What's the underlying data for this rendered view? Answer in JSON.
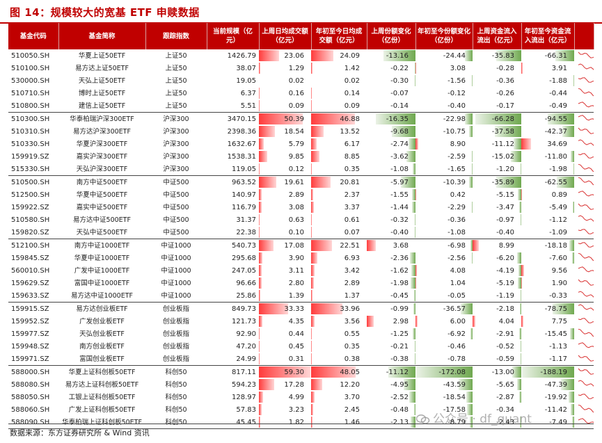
{
  "title": "图 14：规模较大的宽基 ETF 申赎数据",
  "columns": [
    "基金代码",
    "基金简称",
    "跟踪指数",
    "当前规模（亿元）",
    "上周日均成交额（亿元）",
    "年初至今日均成交额（亿元）",
    "上周份额变化（亿份）",
    "年初至今份额变化（亿份）",
    "上周资金流入流出（亿元）",
    "年初至今资金流入流出（亿元）",
    ""
  ],
  "groups": [
    {
      "rows": [
        {
          "code": "510050.SH",
          "name": "华夏上证50ETF",
          "index": "上证50",
          "scale": "1426.79",
          "wk_turn": "23.06",
          "ytd_turn": "24.09",
          "wk_share": "-13.16",
          "ytd_share": "-24.44",
          "wk_flow": "-35.83",
          "ytd_flow": "-66.31"
        },
        {
          "code": "510100.SH",
          "name": "易方达上证50ETF",
          "index": "上证50",
          "scale": "38.07",
          "wk_turn": "1.29",
          "ytd_turn": "1.42",
          "wk_share": "-0.22",
          "ytd_share": "3.08",
          "wk_flow": "-0.28",
          "ytd_flow": "3.91"
        },
        {
          "code": "530000.SH",
          "name": "天弘上证50ETF",
          "index": "上证50",
          "scale": "19.05",
          "wk_turn": "0.02",
          "ytd_turn": "0.02",
          "wk_share": "-0.30",
          "ytd_share": "-1.56",
          "wk_flow": "-0.36",
          "ytd_flow": "-1.88"
        },
        {
          "code": "510710.SH",
          "name": "博时上证50ETF",
          "index": "上证50",
          "scale": "6.37",
          "wk_turn": "0.16",
          "ytd_turn": "0.14",
          "wk_share": "-0.07",
          "ytd_share": "-0.12",
          "wk_flow": "-0.26",
          "ytd_flow": "-0.44"
        },
        {
          "code": "510800.SH",
          "name": "建信上证50ETF",
          "index": "上证50",
          "scale": "5.51",
          "wk_turn": "0.09",
          "ytd_turn": "0.09",
          "wk_share": "-0.14",
          "ytd_share": "-0.40",
          "wk_flow": "-0.17",
          "ytd_flow": "-0.49"
        }
      ]
    },
    {
      "rows": [
        {
          "code": "510300.SH",
          "name": "华泰柏瑞沪深300ETF",
          "index": "沪深300",
          "scale": "3470.15",
          "wk_turn": "50.39",
          "ytd_turn": "46.88",
          "wk_share": "-16.35",
          "ytd_share": "-22.98",
          "wk_flow": "-66.28",
          "ytd_flow": "-94.55"
        },
        {
          "code": "510310.SH",
          "name": "易方达沪深300ETF",
          "index": "沪深300",
          "scale": "2398.36",
          "wk_turn": "18.54",
          "ytd_turn": "13.52",
          "wk_share": "-9.68",
          "ytd_share": "-10.75",
          "wk_flow": "-37.58",
          "ytd_flow": "-42.37"
        },
        {
          "code": "510330.SH",
          "name": "华夏沪深300ETF",
          "index": "沪深300",
          "scale": "1632.67",
          "wk_turn": "5.79",
          "ytd_turn": "6.17",
          "wk_share": "-2.74",
          "ytd_share": "8.90",
          "wk_flow": "-11.12",
          "ytd_flow": "34.69"
        },
        {
          "code": "159919.SZ",
          "name": "嘉实沪深300ETF",
          "index": "沪深300",
          "scale": "1538.31",
          "wk_turn": "9.85",
          "ytd_turn": "8.85",
          "wk_share": "-3.62",
          "ytd_share": "-2.59",
          "wk_flow": "-15.02",
          "ytd_flow": "-11.80"
        },
        {
          "code": "515330.SH",
          "name": "天弘沪深300ETF",
          "index": "沪深300",
          "scale": "119.05",
          "wk_turn": "0.12",
          "ytd_turn": "0.35",
          "wk_share": "-1.08",
          "ytd_share": "-1.65",
          "wk_flow": "-1.20",
          "ytd_flow": "-1.98"
        }
      ]
    },
    {
      "rows": [
        {
          "code": "510500.SH",
          "name": "南方中证500ETF",
          "index": "中证500",
          "scale": "963.52",
          "wk_turn": "19.61",
          "ytd_turn": "20.81",
          "wk_share": "-5.97",
          "ytd_share": "-10.39",
          "wk_flow": "-35.89",
          "ytd_flow": "-62.55"
        },
        {
          "code": "512500.SH",
          "name": "华夏中证500ETF",
          "index": "中证500",
          "scale": "140.97",
          "wk_turn": "2.89",
          "ytd_turn": "2.37",
          "wk_share": "-1.55",
          "ytd_share": "0.42",
          "wk_flow": "-5.15",
          "ytd_flow": "0.89"
        },
        {
          "code": "159922.SZ",
          "name": "嘉实中证500ETF",
          "index": "中证500",
          "scale": "116.79",
          "wk_turn": "3.08",
          "ytd_turn": "3.37",
          "wk_share": "-1.44",
          "ytd_share": "-2.29",
          "wk_flow": "-3.47",
          "ytd_flow": "-5.49"
        },
        {
          "code": "510580.SH",
          "name": "易方达中证500ETF",
          "index": "中证500",
          "scale": "31.37",
          "wk_turn": "0.63",
          "ytd_turn": "0.61",
          "wk_share": "-0.32",
          "ytd_share": "-0.36",
          "wk_flow": "-0.97",
          "ytd_flow": "-1.12"
        },
        {
          "code": "159820.SZ",
          "name": "天弘中证500ETF",
          "index": "中证500",
          "scale": "22.38",
          "wk_turn": "0.10",
          "ytd_turn": "0.07",
          "wk_share": "-0.40",
          "ytd_share": "-1.08",
          "wk_flow": "-0.40",
          "ytd_flow": "-1.09"
        }
      ]
    },
    {
      "rows": [
        {
          "code": "512100.SH",
          "name": "南方中证1000ETF",
          "index": "中证1000",
          "scale": "540.73",
          "wk_turn": "17.08",
          "ytd_turn": "22.51",
          "wk_share": "3.68",
          "ytd_share": "-6.98",
          "wk_flow": "8.99",
          "ytd_flow": "-18.18"
        },
        {
          "code": "159845.SZ",
          "name": "华夏中证1000ETF",
          "index": "中证1000",
          "scale": "295.68",
          "wk_turn": "3.90",
          "ytd_turn": "6.93",
          "wk_share": "-2.36",
          "ytd_share": "-2.56",
          "wk_flow": "-6.20",
          "ytd_flow": "-7.60"
        },
        {
          "code": "560010.SH",
          "name": "广发中证1000ETF",
          "index": "中证1000",
          "scale": "247.05",
          "wk_turn": "3.11",
          "ytd_turn": "3.42",
          "wk_share": "-1.62",
          "ytd_share": "4.08",
          "wk_flow": "-4.19",
          "ytd_flow": "9.56"
        },
        {
          "code": "159629.SZ",
          "name": "富国中证1000ETF",
          "index": "中证1000",
          "scale": "96.66",
          "wk_turn": "2.80",
          "ytd_turn": "2.89",
          "wk_share": "-1.98",
          "ytd_share": "1.04",
          "wk_flow": "-5.19",
          "ytd_flow": "1.90"
        },
        {
          "code": "159633.SZ",
          "name": "易方达中证1000ETF",
          "index": "中证1000",
          "scale": "25.86",
          "wk_turn": "1.39",
          "ytd_turn": "1.37",
          "wk_share": "-0.45",
          "ytd_share": "-0.05",
          "wk_flow": "-1.19",
          "ytd_flow": "-0.33"
        }
      ]
    },
    {
      "rows": [
        {
          "code": "159915.SZ",
          "name": "易方达创业板ETF",
          "index": "创业板指",
          "scale": "849.73",
          "wk_turn": "33.33",
          "ytd_turn": "33.96",
          "wk_share": "-0.99",
          "ytd_share": "-36.57",
          "wk_flow": "-2.18",
          "ytd_flow": "-78.75"
        },
        {
          "code": "159952.SZ",
          "name": "广发创业板ETF",
          "index": "创业板指",
          "scale": "121.73",
          "wk_turn": "4.35",
          "ytd_turn": "3.56",
          "wk_share": "2.98",
          "ytd_share": "6.00",
          "wk_flow": "4.04",
          "ytd_flow": "7.75"
        },
        {
          "code": "159977.SZ",
          "name": "天弘创业板ETF",
          "index": "创业板指",
          "scale": "92.90",
          "wk_turn": "0.44",
          "ytd_turn": "0.55",
          "wk_share": "-1.25",
          "ytd_share": "-6.92",
          "wk_flow": "-2.91",
          "ytd_flow": "-15.45"
        },
        {
          "code": "159948.SZ",
          "name": "南方创业板ETF",
          "index": "创业板指",
          "scale": "47.20",
          "wk_turn": "0.45",
          "ytd_turn": "0.35",
          "wk_share": "-0.21",
          "ytd_share": "-0.46",
          "wk_flow": "-0.52",
          "ytd_flow": "-1.13"
        },
        {
          "code": "159971.SZ",
          "name": "富国创业板ETF",
          "index": "创业板指",
          "scale": "24.99",
          "wk_turn": "0.31",
          "ytd_turn": "0.38",
          "wk_share": "-0.38",
          "ytd_share": "-0.78",
          "wk_flow": "-0.59",
          "ytd_flow": "-1.17"
        }
      ]
    },
    {
      "rows": [
        {
          "code": "588000.SH",
          "name": "华夏上证科创板50ETF",
          "index": "科创50",
          "scale": "817.11",
          "wk_turn": "59.30",
          "ytd_turn": "48.05",
          "wk_share": "-11.12",
          "ytd_share": "-172.08",
          "wk_flow": "-13.00",
          "ytd_flow": "-188.19"
        },
        {
          "code": "588080.SH",
          "name": "易方达上证科创板50ETF",
          "index": "科创50",
          "scale": "594.23",
          "wk_turn": "17.28",
          "ytd_turn": "12.20",
          "wk_share": "-4.95",
          "ytd_share": "-43.59",
          "wk_flow": "-5.65",
          "ytd_flow": "-47.39"
        },
        {
          "code": "588050.SH",
          "name": "工银上证科创板50ETF",
          "index": "科创50",
          "scale": "128.97",
          "wk_turn": "4.99",
          "ytd_turn": "3.70",
          "wk_share": "-2.52",
          "ytd_share": "-18.54",
          "wk_flow": "-2.87",
          "ytd_flow": "-19.92"
        },
        {
          "code": "588060.SH",
          "name": "广发上证科创板50ETF",
          "index": "科创50",
          "scale": "57.83",
          "wk_turn": "3.23",
          "ytd_turn": "2.45",
          "wk_share": "-0.48",
          "ytd_share": "-17.58",
          "wk_flow": "-0.34",
          "ytd_flow": "-11.42"
        },
        {
          "code": "588090.SH",
          "name": "华泰柏瑞上证科创板50ETF",
          "index": "科创50",
          "scale": "45.45",
          "wk_turn": "1.82",
          "ytd_turn": "1.46",
          "wk_share": "-2.13",
          "ytd_share": "-8.79",
          "wk_flow": "-2.43",
          "ytd_flow": "-7.49"
        }
      ]
    }
  ],
  "scale_max": {
    "turn": 60,
    "share": 20,
    "ytd_share": 175,
    "flow": 70,
    "ytd_flow": 190
  },
  "colors": {
    "accent": "#c00000",
    "pos_bar": "#ff3b3b",
    "neg_bar": "#6fa84f",
    "spark": "#d93030"
  },
  "footer": "数据来源：东方证券研究所 & Wind 资讯",
  "watermark": "公众号 · df_quant"
}
